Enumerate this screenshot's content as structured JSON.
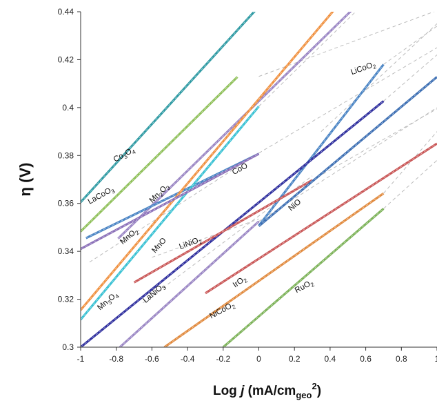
{
  "chart_data": {
    "type": "line",
    "xlabel": "Log j (mA/cm_geo^2)",
    "ylabel": "η (V)",
    "xlim": [
      -1,
      1
    ],
    "ylim": [
      0.3,
      0.44
    ],
    "x_ticks": [
      "-1",
      "-0.8",
      "-0.6",
      "-0.4",
      "-0.2",
      "0",
      "0.2",
      "0.4",
      "0.6",
      "0.8",
      "1"
    ],
    "y_ticks": [
      "0.3",
      "0.32",
      "0.34",
      "0.36",
      "0.38",
      "0.4",
      "0.42",
      "0.44"
    ],
    "grid": false,
    "legend": "none; series labelled inline",
    "series": [
      {
        "name": "Co3O4",
        "color": "#2e9aa3",
        "x": [
          -1.0,
          -0.02
        ],
        "y": [
          0.3605,
          0.4405
        ],
        "label_parts": [
          [
            "Co",
            false
          ],
          [
            "3",
            true
          ],
          [
            "O",
            false
          ],
          [
            "4",
            true
          ]
        ]
      },
      {
        "name": "LaCoO3",
        "color": "#8fc05a",
        "x": [
          -1.0,
          -0.12
        ],
        "y": [
          0.3483,
          0.4128
        ],
        "label_parts": [
          [
            "LaCoO",
            false
          ],
          [
            "3",
            true
          ]
        ]
      },
      {
        "name": "Mn2O3",
        "color": "#9a86c4",
        "x": [
          -0.79,
          0.52
        ],
        "y": [
          0.3453,
          0.4405
        ],
        "label_parts": [
          [
            "Mn",
            false
          ],
          [
            "2",
            true
          ],
          [
            "O",
            false
          ],
          [
            "3",
            true
          ]
        ]
      },
      {
        "name": "MnO2",
        "color": "#4a84c4",
        "x": [
          -0.97,
          0.0
        ],
        "y": [
          0.3455,
          0.3807
        ],
        "label_parts": [
          [
            "MnO",
            false
          ],
          [
            "2",
            true
          ]
        ]
      },
      {
        "name": "MnO",
        "color": "#f09140",
        "x": [
          -1.0,
          0.42
        ],
        "y": [
          0.3155,
          0.4405
        ],
        "label_parts": [
          [
            "MnO",
            false
          ]
        ]
      },
      {
        "name": "MnO (cyan)",
        "color": "#38c1d3",
        "x": [
          -1.0,
          0.0
        ],
        "y": [
          0.3115,
          0.4005
        ],
        "label_parts": []
      },
      {
        "name": "CoO",
        "color": "#8b70b8",
        "x": [
          -1.0,
          0.0
        ],
        "y": [
          0.341,
          0.3807
        ],
        "label_parts": [
          [
            "CoO",
            false
          ]
        ]
      },
      {
        "name": "LiCoO2",
        "color": "#4a84c4",
        "x": [
          0.0,
          0.7
        ],
        "y": [
          0.3507,
          0.418
        ],
        "label_parts": [
          [
            "LiCoO",
            false
          ],
          [
            "2",
            true
          ]
        ]
      },
      {
        "name": "Mn3O4",
        "color": "#2f2f9e",
        "x": [
          -1.0,
          0.7
        ],
        "y": [
          0.3,
          0.4027
        ],
        "label_parts": [
          [
            "Mn",
            false
          ],
          [
            "3",
            true
          ],
          [
            "O",
            false
          ],
          [
            "4",
            true
          ]
        ]
      },
      {
        "name": "LaNiO3",
        "color": "#9a86c4",
        "x": [
          -0.78,
          0.0
        ],
        "y": [
          0.3,
          0.3525
        ],
        "label_parts": [
          [
            "LaNiO",
            false
          ],
          [
            "3",
            true
          ]
        ]
      },
      {
        "name": "LiNiO2",
        "color": "#c95757",
        "x": [
          -0.7,
          0.3
        ],
        "y": [
          0.327,
          0.3697
        ],
        "label_parts": [
          [
            "LiNiO",
            false
          ],
          [
            "2",
            true
          ]
        ]
      },
      {
        "name": "NiO",
        "color": "#3d6fb3",
        "x": [
          0.0,
          1.0
        ],
        "y": [
          0.3505,
          0.4128
        ],
        "label_parts": [
          [
            "NiO",
            false
          ]
        ]
      },
      {
        "name": "IrO2",
        "color": "#c95757",
        "x": [
          -0.3,
          1.0
        ],
        "y": [
          0.3225,
          0.385
        ],
        "label_parts": [
          [
            "IrO",
            false
          ],
          [
            "2",
            true
          ]
        ]
      },
      {
        "name": "NiCoO2",
        "color": "#e18a3e",
        "x": [
          -0.53,
          0.7
        ],
        "y": [
          0.3,
          0.3642
        ],
        "label_parts": [
          [
            "NiCoO",
            false
          ],
          [
            "2",
            true
          ]
        ]
      },
      {
        "name": "RuO2",
        "color": "#7cb258",
        "x": [
          -0.2,
          0.7
        ],
        "y": [
          0.3,
          0.3578
        ],
        "label_parts": [
          [
            "RuO",
            false
          ],
          [
            "2",
            true
          ]
        ]
      }
    ],
    "fit_lines": [
      {
        "x": [
          -0.95,
          0.0
        ],
        "y": [
          0.3355,
          0.381
        ]
      },
      {
        "x": [
          -0.6,
          0.0
        ],
        "y": [
          0.3375,
          0.3535
        ]
      },
      {
        "x": [
          -0.65,
          0.3
        ],
        "y": [
          0.3185,
          0.3715
        ]
      },
      {
        "x": [
          0.0,
          1.0
        ],
        "y": [
          0.381,
          0.425
        ]
      },
      {
        "x": [
          0.7,
          1.0
        ],
        "y": [
          0.418,
          0.434
        ]
      },
      {
        "x": [
          0.0,
          1.0
        ],
        "y": [
          0.413,
          0.4405
        ]
      },
      {
        "x": [
          0.0,
          0.55
        ],
        "y": [
          0.4005,
          0.4405
        ]
      },
      {
        "x": [
          0.7,
          1.0
        ],
        "y": [
          0.4027,
          0.422
        ]
      },
      {
        "x": [
          0.3,
          1.0
        ],
        "y": [
          0.3697,
          0.3995
        ]
      },
      {
        "x": [
          0.7,
          1.0
        ],
        "y": [
          0.3642,
          0.39
        ]
      },
      {
        "x": [
          0.7,
          1.0
        ],
        "y": [
          0.3578,
          0.378
        ]
      },
      {
        "x": [
          0.0,
          1.0
        ],
        "y": [
          0.3525,
          0.4
        ]
      },
      {
        "x": [
          0.35,
          1.0
        ],
        "y": [
          0.39,
          0.435
        ]
      }
    ],
    "labels": [
      {
        "series": "Co3O4",
        "x": -0.75,
        "y": 0.3795,
        "angle": -29
      },
      {
        "series": "LaCoO3",
        "x": -0.88,
        "y": 0.3625,
        "angle": -29
      },
      {
        "series": "Mn2O3",
        "x": -0.55,
        "y": 0.3635,
        "angle": -44
      },
      {
        "series": "MnO2",
        "x": -0.72,
        "y": 0.3455,
        "angle": -40
      },
      {
        "series": "MnO",
        "x": -0.55,
        "y": 0.3418,
        "angle": -48
      },
      {
        "series": "CoO",
        "x": -0.1,
        "y": 0.3735,
        "angle": -28
      },
      {
        "series": "LiCoO2",
        "x": 0.59,
        "y": 0.4155,
        "angle": -20
      },
      {
        "series": "LiNiO2",
        "x": -0.38,
        "y": 0.3425,
        "angle": -20
      },
      {
        "series": "NiO",
        "x": 0.21,
        "y": 0.3585,
        "angle": -40
      },
      {
        "series": "Mn3O4",
        "x": -0.84,
        "y": 0.3185,
        "angle": -40
      },
      {
        "series": "LaNiO3",
        "x": -0.58,
        "y": 0.3218,
        "angle": -40
      },
      {
        "series": "IrO2",
        "x": -0.1,
        "y": 0.3265,
        "angle": -35
      },
      {
        "series": "NiCoO2",
        "x": -0.2,
        "y": 0.3145,
        "angle": -28
      },
      {
        "series": "RuO2",
        "x": 0.26,
        "y": 0.3245,
        "angle": -28
      }
    ]
  }
}
